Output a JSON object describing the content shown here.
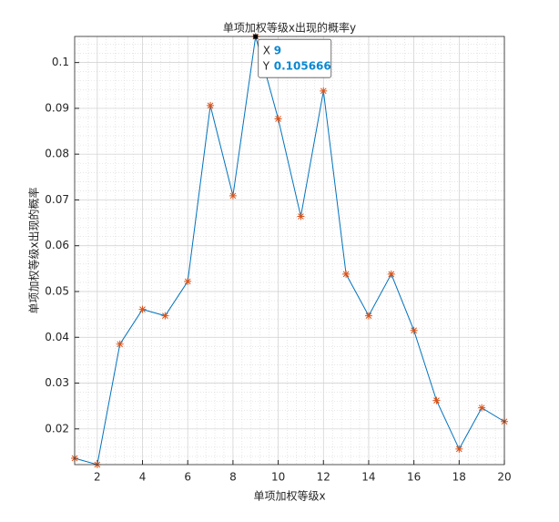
{
  "chart_data": {
    "type": "line",
    "title": "单项加权等级x出现的概率y",
    "x_label": "单项加权等级x",
    "y_label": "单项加权等级x出现的概率",
    "x": [
      1,
      2,
      3,
      4,
      5,
      6,
      7,
      8,
      9,
      10,
      11,
      12,
      13,
      14,
      15,
      16,
      17,
      18,
      19,
      20
    ],
    "series": [
      {
        "name": "概率",
        "color": "#0072bd",
        "marker_color": "#d95319",
        "values": [
          0.0136,
          0.0122,
          0.0385,
          0.0461,
          0.0447,
          0.0522,
          0.0906,
          0.0709,
          0.105666,
          0.0877,
          0.0664,
          0.0938,
          0.0538,
          0.0447,
          0.0538,
          0.0415,
          0.0262,
          0.0156,
          0.0246,
          0.0216
        ]
      }
    ],
    "xlim": [
      1,
      20
    ],
    "ylim": [
      0.0122,
      0.1057
    ],
    "xticks": [
      2,
      4,
      6,
      8,
      10,
      12,
      14,
      16,
      18,
      20
    ],
    "yticks": [
      0.02,
      0.03,
      0.04,
      0.05,
      0.06,
      0.07,
      0.08,
      0.09,
      0.1
    ],
    "grid": true,
    "minor_grid": true,
    "datatip": {
      "labels": [
        "X",
        "Y"
      ],
      "index": 8
    }
  }
}
